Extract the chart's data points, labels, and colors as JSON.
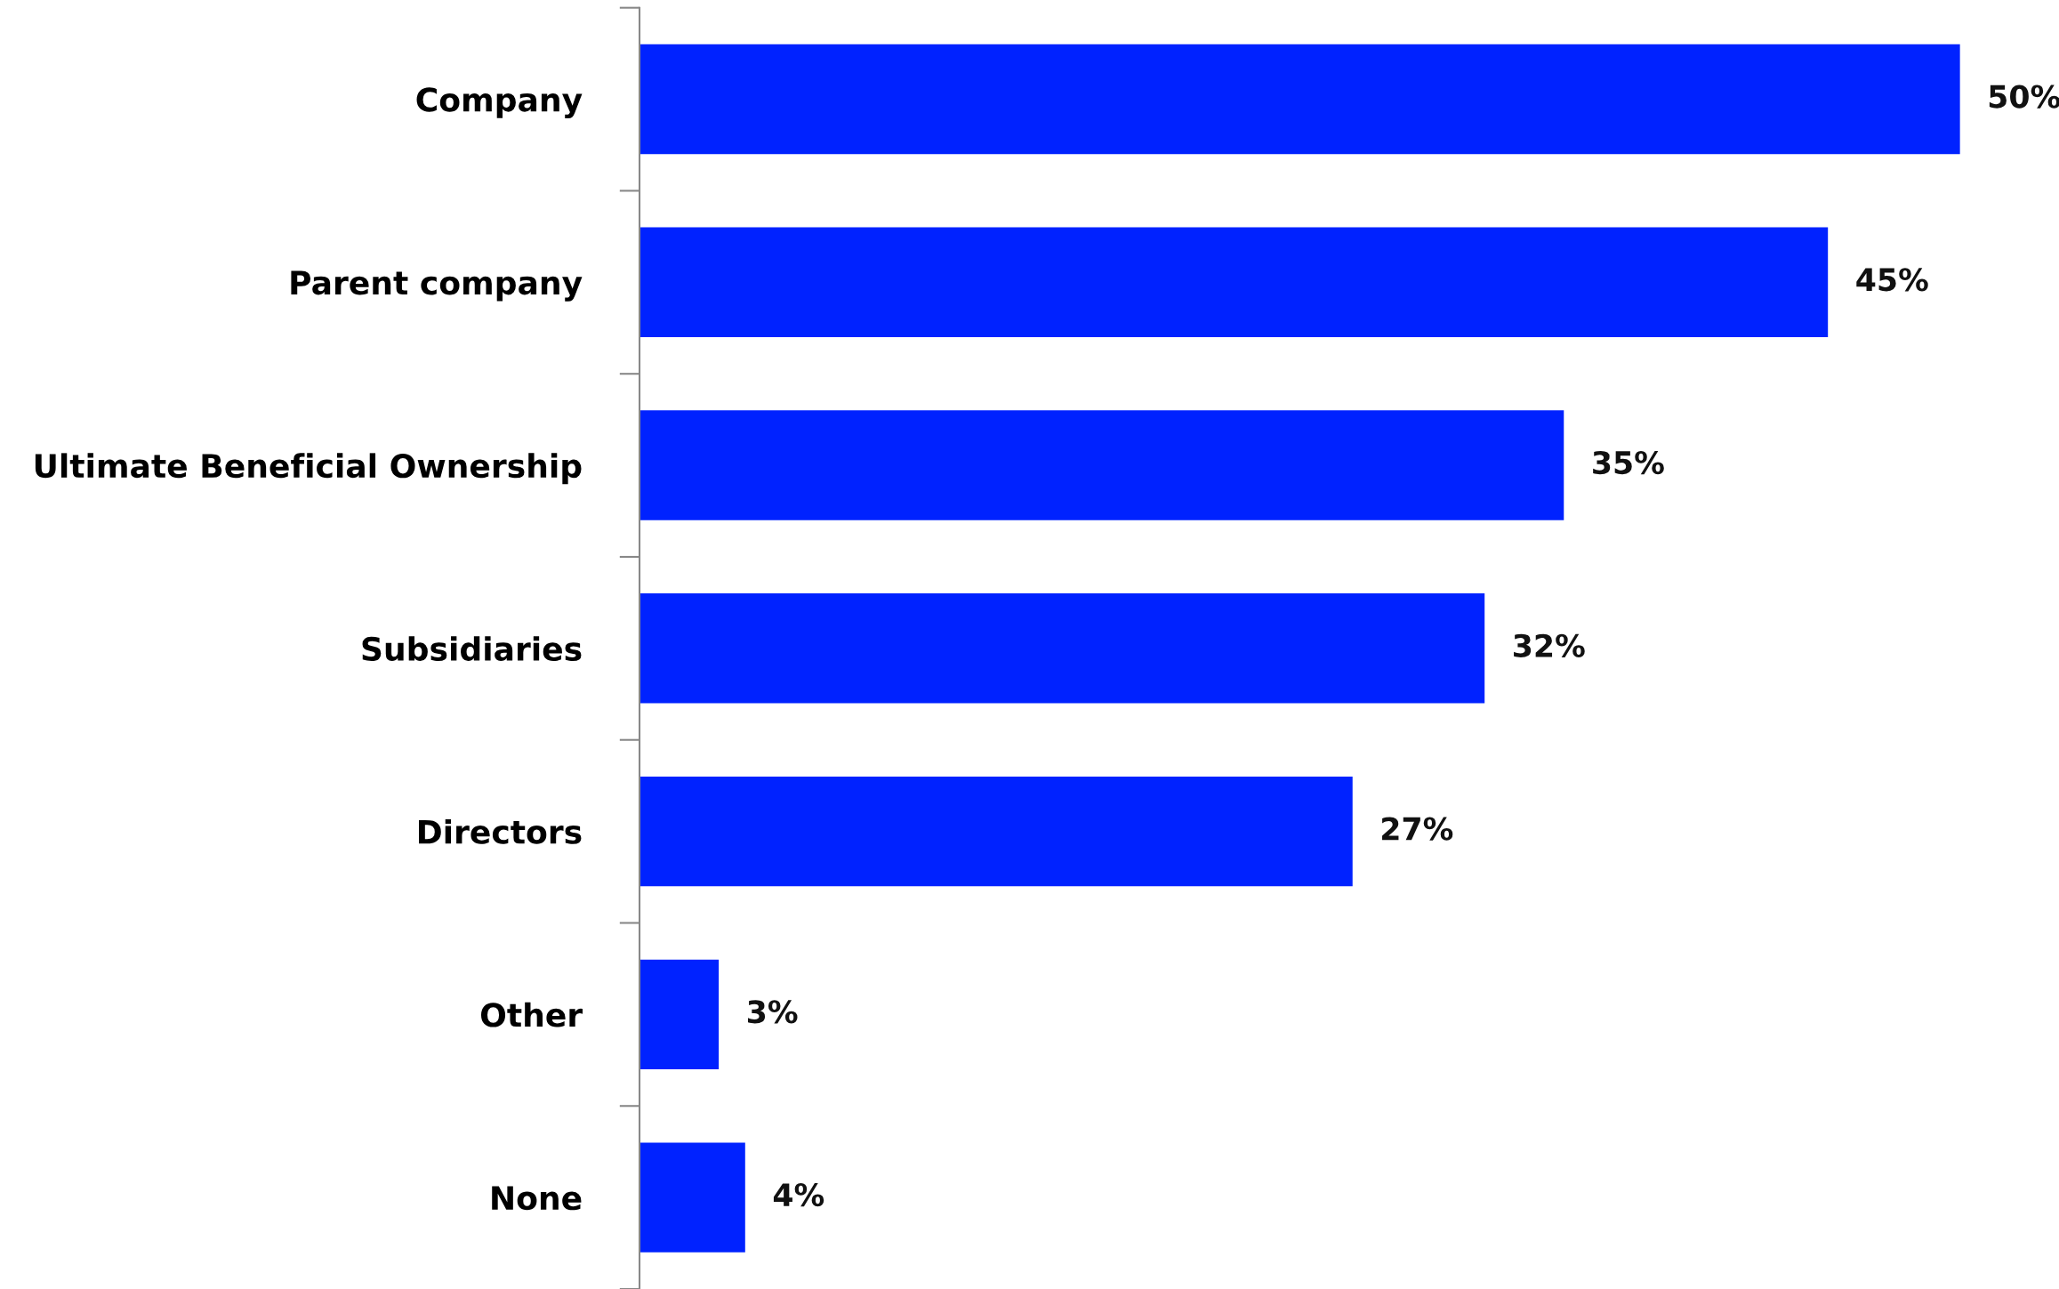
{
  "chart_data": {
    "type": "bar",
    "orientation": "horizontal",
    "categories": [
      "Company",
      "Parent company",
      "Ultimate Beneficial Ownership",
      "Subsidiaries",
      "Directors",
      "Other",
      "None"
    ],
    "values": [
      50,
      45,
      35,
      32,
      27,
      3,
      4
    ],
    "value_labels": [
      "50%",
      "45%",
      "35%",
      "32%",
      "27%",
      "3%",
      "4%"
    ],
    "color": "#0022ff",
    "tick_labels": "y",
    "grid": false,
    "legend": false
  }
}
